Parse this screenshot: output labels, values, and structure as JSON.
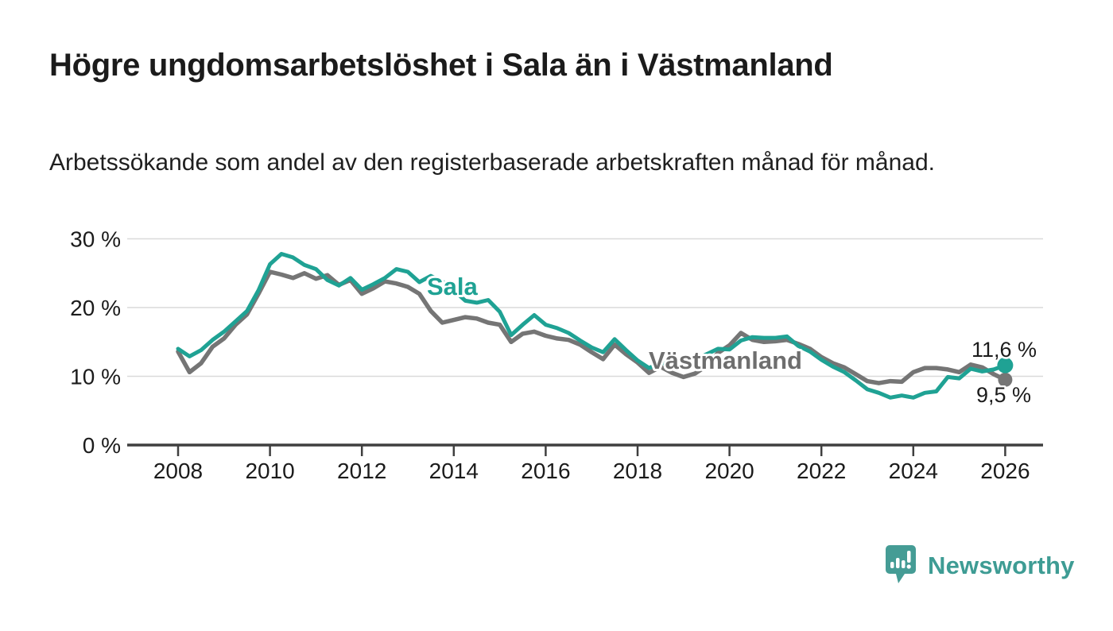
{
  "page": {
    "title": "Högre ungdomsarbetslöshet i Sala än i Västmanland",
    "subtitle": "Arbetssökande som andel av den registerbaserade arbetskraften månad för månad."
  },
  "branding": {
    "logo_text": "Newsworthy",
    "logo_icon": "newsworthy-speech-bubble-bar-chart-icon",
    "brand_color": "#3E9C94"
  },
  "colors": {
    "accent_teal": "#1FA294",
    "line_gray": "#757575",
    "grid": "#DADADA",
    "axis": "#3F3F3F",
    "text": "#1B1B1B"
  },
  "chart_data": {
    "type": "line",
    "title": "Högre ungdomsarbetslöshet i Sala än i Västmanland",
    "subtitle": "Arbetssökande som andel av den registerbaserade arbetskraften månad för månad.",
    "unit": "%",
    "grid": "horizontal",
    "legend_position": "inline-labels",
    "x_axis": {
      "ticks": [
        2008,
        2010,
        2012,
        2014,
        2016,
        2018,
        2020,
        2022,
        2024,
        2026
      ],
      "range": [
        2007.9,
        2026.8
      ]
    },
    "y_axis": {
      "tick_values": [
        0,
        10,
        20,
        30
      ],
      "tick_labels": [
        "0 %",
        "10 %",
        "20 %",
        "30 %"
      ],
      "range": [
        0,
        31
      ]
    },
    "x": [
      2008,
      2008.25,
      2008.5,
      2008.75,
      2009,
      2009.25,
      2009.5,
      2009.75,
      2010,
      2010.25,
      2010.5,
      2010.75,
      2011,
      2011.25,
      2011.5,
      2011.75,
      2012,
      2012.25,
      2012.5,
      2012.75,
      2013,
      2013.25,
      2013.5,
      2013.75,
      2014,
      2014.25,
      2014.5,
      2014.75,
      2015,
      2015.25,
      2015.5,
      2015.75,
      2016,
      2016.25,
      2016.5,
      2016.75,
      2017,
      2017.25,
      2017.5,
      2017.75,
      2018,
      2018.25,
      2018.5,
      2018.75,
      2019,
      2019.25,
      2019.5,
      2019.75,
      2020,
      2020.25,
      2020.5,
      2020.75,
      2021,
      2021.25,
      2021.5,
      2021.75,
      2022,
      2022.25,
      2022.5,
      2022.75,
      2023,
      2023.25,
      2023.5,
      2023.75,
      2024,
      2024.25,
      2024.5,
      2024.75,
      2025,
      2025.25,
      2025.5,
      2025.75,
      2026
    ],
    "series": [
      {
        "id": "vastmanland",
        "name": "Västmanland",
        "color": "#757575",
        "end_label": "9,5 %",
        "end_value": 9.5,
        "values": [
          13.6,
          10.6,
          11.9,
          14.3,
          15.5,
          17.5,
          19.0,
          22.0,
          25.2,
          24.8,
          24.3,
          25.0,
          24.2,
          24.7,
          23.3,
          24.0,
          22.0,
          22.8,
          23.8,
          23.5,
          23.0,
          22.0,
          19.5,
          17.8,
          18.2,
          18.6,
          18.4,
          17.8,
          17.5,
          15.0,
          16.2,
          16.5,
          15.9,
          15.5,
          15.3,
          14.6,
          13.5,
          12.5,
          14.6,
          13.2,
          12.0,
          10.5,
          11.4,
          10.5,
          9.9,
          10.4,
          11.5,
          13.4,
          14.5,
          16.3,
          15.3,
          15.0,
          15.1,
          15.3,
          14.7,
          14.0,
          12.8,
          11.9,
          11.3,
          10.3,
          9.3,
          9.0,
          9.3,
          9.2,
          10.6,
          11.2,
          11.2,
          11.0,
          10.6,
          11.7,
          11.3,
          10.3,
          9.5
        ]
      },
      {
        "id": "sala",
        "name": "Sala",
        "color": "#1FA294",
        "end_label": "11,6 %",
        "end_value": 11.6,
        "values": [
          14.0,
          12.9,
          13.8,
          15.3,
          16.5,
          18.0,
          19.5,
          22.5,
          26.3,
          27.8,
          27.3,
          26.2,
          25.6,
          24.0,
          23.2,
          24.3,
          22.6,
          23.4,
          24.3,
          25.6,
          25.2,
          23.7,
          24.6,
          23.8,
          22.5,
          21.0,
          20.7,
          21.1,
          19.4,
          16.0,
          17.5,
          18.9,
          17.5,
          17.0,
          16.3,
          15.2,
          14.2,
          13.5,
          15.4,
          13.8,
          12.3,
          11.2,
          12.0,
          11.6,
          11.9,
          12.4,
          13.2,
          14.0,
          13.9,
          15.2,
          15.7,
          15.6,
          15.6,
          15.8,
          14.4,
          13.6,
          12.4,
          11.4,
          10.6,
          9.4,
          8.1,
          7.6,
          6.9,
          7.2,
          6.9,
          7.6,
          7.8,
          9.9,
          9.7,
          11.1,
          10.7,
          11.0,
          11.6
        ]
      }
    ]
  }
}
